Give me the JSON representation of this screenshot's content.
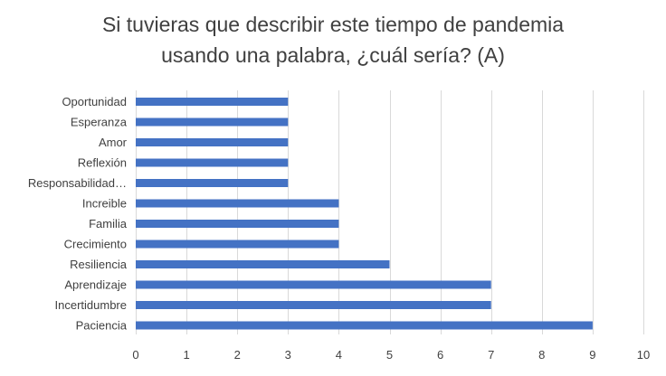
{
  "chart_data": {
    "type": "bar",
    "orientation": "horizontal",
    "title_lines": [
      "Si tuvieras que describir este tiempo de pandemia",
      "usando una palabra, ¿cuál sería? (A)"
    ],
    "categories": [
      "Oportunidad",
      "Esperanza",
      "Amor",
      "Reflexión",
      "Responsabilidad…",
      "Increible",
      "Familia",
      "Crecimiento",
      "Resiliencia",
      "Aprendizaje",
      "Incertidumbre",
      "Paciencia"
    ],
    "values": [
      3,
      3,
      3,
      3,
      3,
      4,
      4,
      4,
      5,
      7,
      7,
      9
    ],
    "xlim": [
      0,
      10
    ],
    "xticks": [
      0,
      1,
      2,
      3,
      4,
      5,
      6,
      7,
      8,
      9,
      10
    ],
    "grid": "vertical",
    "bar_color": "#4472C4",
    "grid_color": "#D9D9D9",
    "text_color": "#404040"
  }
}
